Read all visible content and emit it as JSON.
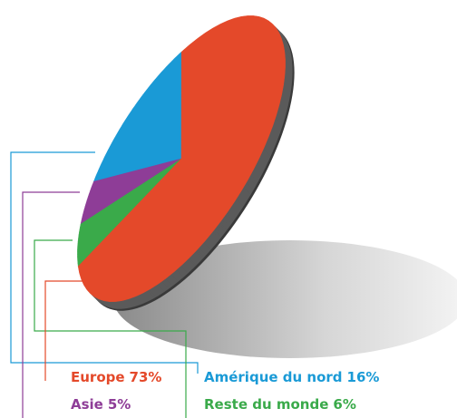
{
  "chart_data": {
    "type": "pie",
    "categories": [
      "Europe",
      "Amérique du nord",
      "Asie",
      "Reste du monde"
    ],
    "values": [
      73,
      16,
      5,
      6
    ],
    "value_labels": [
      "73%",
      "16%",
      "5%",
      "6%"
    ],
    "colors": [
      "#e4492a",
      "#1a9ad6",
      "#8e3d97",
      "#3aaa4a"
    ]
  }
}
